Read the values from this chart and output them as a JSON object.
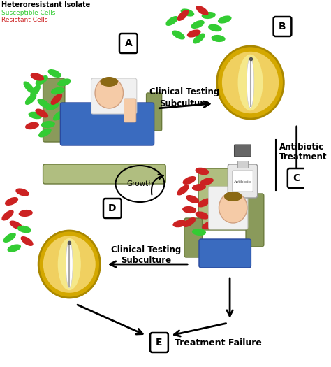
{
  "bg_color": "#ffffff",
  "label_A": "A",
  "label_B": "B",
  "label_C": "C",
  "label_D": "D",
  "label_E": "E",
  "legend_title": "Heteroresistant Isolate",
  "legend_susceptible": "Susceptible Cells",
  "legend_resistant": "Resistant Cells",
  "susc_color": "#33cc33",
  "res_color": "#cc2222",
  "text_clinical_testing": "Clinical Testing",
  "text_subculture": "Subculture",
  "text_antibiotic": "Antibiotic",
  "text_treatment": "Treatment",
  "text_growth": "Growth",
  "text_treatment_failure": "Treatment Failure",
  "petri_color": "#d4a800",
  "petri_light": "#f0d060",
  "petri_inner": "#f5e88a",
  "bed_blue": "#3a6bbf",
  "bed_green": "#8a9a5b",
  "bed_light_green": "#b0be80",
  "skin_color": "#f5cba7",
  "white_shirt": "#f0f0f0",
  "bottle_body": "#e8e8e8",
  "bottle_cap": "#666666",
  "bottle_label": "#ffffff",
  "arrow_lw": 2.0,
  "bacteria_A": [
    [
      65,
      115,
      30,
      "s"
    ],
    [
      85,
      105,
      -20,
      "s"
    ],
    [
      55,
      130,
      50,
      "s"
    ],
    [
      90,
      130,
      10,
      "s"
    ],
    [
      68,
      148,
      -30,
      "s"
    ],
    [
      48,
      142,
      40,
      "s"
    ],
    [
      82,
      152,
      20,
      "s"
    ],
    [
      55,
      165,
      -10,
      "s"
    ],
    [
      92,
      165,
      35,
      "s"
    ],
    [
      75,
      178,
      5,
      "s"
    ],
    [
      45,
      125,
      -45,
      "s"
    ],
    [
      100,
      118,
      15,
      "s"
    ],
    [
      70,
      190,
      25,
      "s"
    ],
    [
      58,
      110,
      -15,
      "r"
    ],
    [
      88,
      142,
      40,
      "r"
    ],
    [
      65,
      162,
      -25,
      "r"
    ],
    [
      50,
      180,
      10,
      "r"
    ]
  ],
  "bacteria_B": [
    [
      268,
      30,
      30,
      "s"
    ],
    [
      292,
      18,
      -15,
      "s"
    ],
    [
      308,
      35,
      20,
      "s"
    ],
    [
      325,
      22,
      5,
      "s"
    ],
    [
      278,
      50,
      -25,
      "s"
    ],
    [
      310,
      55,
      35,
      "s"
    ],
    [
      335,
      40,
      -10,
      "s"
    ],
    [
      350,
      28,
      15,
      "s"
    ],
    [
      340,
      55,
      -5,
      "s"
    ],
    [
      285,
      22,
      40,
      "r"
    ],
    [
      315,
      15,
      -30,
      "r"
    ],
    [
      302,
      48,
      15,
      "r"
    ]
  ],
  "bacteria_mid": [
    [
      295,
      258,
      20,
      "r"
    ],
    [
      315,
      245,
      -10,
      "r"
    ],
    [
      285,
      272,
      35,
      "r"
    ],
    [
      310,
      268,
      5,
      "r"
    ],
    [
      300,
      285,
      -20,
      "r"
    ],
    [
      322,
      260,
      15,
      "r"
    ],
    [
      295,
      300,
      -5,
      "r"
    ],
    [
      318,
      290,
      25,
      "r"
    ],
    [
      295,
      318,
      30,
      "r"
    ],
    [
      315,
      308,
      -15,
      "r"
    ],
    [
      280,
      320,
      10,
      "r"
    ],
    [
      310,
      332,
      -5,
      "s"
    ],
    [
      325,
      322,
      20,
      "r"
    ]
  ],
  "bacteria_D": [
    [
      18,
      288,
      20,
      "r"
    ],
    [
      35,
      275,
      -15,
      "r"
    ],
    [
      12,
      308,
      35,
      "r"
    ],
    [
      40,
      305,
      5,
      "r"
    ],
    [
      25,
      322,
      -25,
      "r"
    ],
    [
      15,
      340,
      30,
      "s"
    ],
    [
      38,
      328,
      -10,
      "s"
    ],
    [
      22,
      355,
      15,
      "s"
    ],
    [
      42,
      345,
      -30,
      "r"
    ]
  ]
}
